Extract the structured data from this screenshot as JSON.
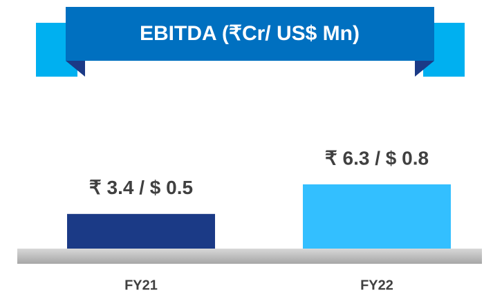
{
  "chart_data": {
    "type": "bar",
    "title": "EBITDA (₹Cr/ US$ Mn)",
    "categories": [
      "FY21",
      "FY22"
    ],
    "values": [
      3.4,
      6.3
    ],
    "value_labels": [
      "₹ 3.4 / $ 0.5",
      "₹ 6.3 / $ 0.8"
    ],
    "colors": [
      "#1b3a86",
      "#33bfff"
    ]
  }
}
